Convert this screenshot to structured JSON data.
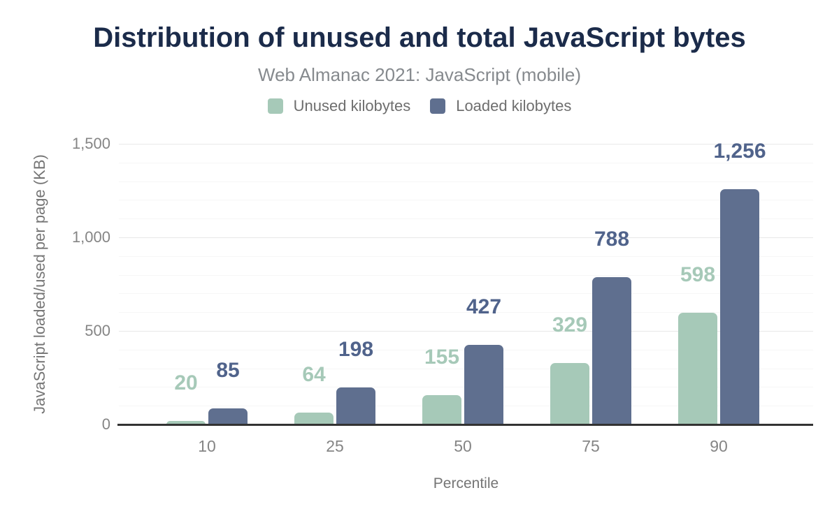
{
  "chart_data": {
    "type": "bar",
    "title": "Distribution of unused and total JavaScript bytes",
    "subtitle": "Web Almanac 2021: JavaScript (mobile)",
    "xlabel": "Percentile",
    "ylabel": "JavaScript loaded/used per page (KB)",
    "categories": [
      "10",
      "25",
      "50",
      "75",
      "90"
    ],
    "series": [
      {
        "name": "Unused kilobytes",
        "color": "#a6c9b8",
        "label_color": "#a6c9b8",
        "values": [
          20,
          64,
          155,
          329,
          598
        ],
        "value_labels": [
          "20",
          "64",
          "155",
          "329",
          "598"
        ]
      },
      {
        "name": "Loaded kilobytes",
        "color": "#5f6f8f",
        "label_color": "#50638b",
        "values": [
          85,
          198,
          427,
          788,
          1256
        ],
        "value_labels": [
          "85",
          "198",
          "427",
          "788",
          "1,256"
        ]
      }
    ],
    "ylim": [
      0,
      1500
    ],
    "y_ticks": [
      {
        "value": 0,
        "label": "0"
      },
      {
        "value": 500,
        "label": "500"
      },
      {
        "value": 1000,
        "label": "1,000"
      },
      {
        "value": 1500,
        "label": "1,500"
      }
    ],
    "minor_grid_step": 100,
    "major_grid_step": 500,
    "grid": true,
    "legend_position": "top"
  },
  "theme": {
    "background": "#ffffff",
    "title_color": "#1b2b4a",
    "subtitle_color": "#868a8e",
    "legend_text_color": "#6e6e6e",
    "tick_label_color": "#858585",
    "axis_title_color": "#757575",
    "baseline_color": "#333333",
    "minor_grid_color": "#f6f6f6",
    "major_grid_color": "#e8e8e8"
  }
}
